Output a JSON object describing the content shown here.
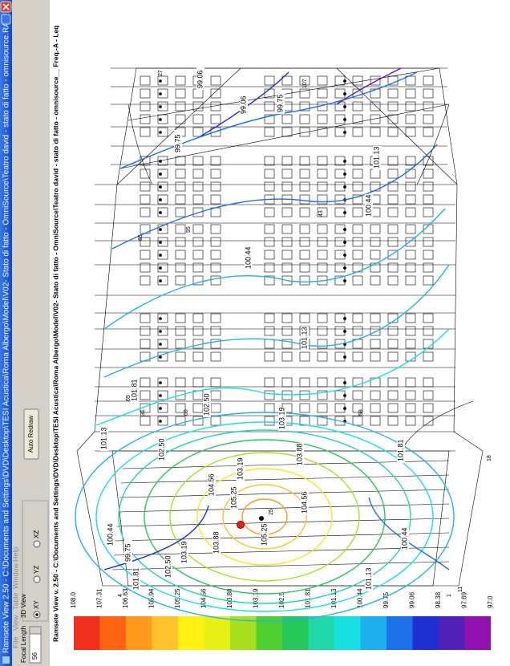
{
  "window": {
    "title": "Ramsete View 2.50 - C:\\Documents and Settings\\DVD\\Desktop\\TESI Acustica\\Roma Albergo\\Model\\V02- Stato di fatto - OmniSource\\Teatro david - stato di fatto - omnisource.RAY",
    "menu": [
      "File",
      "View",
      "Table",
      "Window",
      "Help"
    ]
  },
  "toolbar": {
    "focal_length_label": "Focal Length",
    "focal_length": "56",
    "view_group": "3D View",
    "views": [
      "XY",
      "YZ",
      "XZ"
    ],
    "auto_redraw": "Auto Redraw"
  },
  "plot": {
    "header": "Ramsete View v. 2.50 - C:\\Documents and Settings\\DVD\\Desktop\\TESI Acustica\\Roma Albergo\\Model\\V02- Stato di fatto - OmniSource\\Teatro david - stato di fatto - omnisource__ Freq.-A - Leq",
    "contour_labels": [
      "105.25",
      "104.56",
      "103.88",
      "103.19",
      "102.50",
      "101.81",
      "101.13",
      "100.44",
      "99.75",
      "105.25",
      "104.56",
      "103.88",
      "103.19",
      "102.50",
      "101.81",
      "101.13",
      "100.44",
      "103.19",
      "102.50",
      "101.81",
      "101.13",
      "100.44",
      "99.75",
      "99.06",
      "99.75",
      "99.06",
      "101.13",
      "100.44"
    ],
    "point_labels": [
      "4",
      "1",
      "25",
      "31",
      "60",
      "65",
      "85",
      "95",
      "43",
      "58",
      "107",
      "27",
      "18",
      "11"
    ]
  },
  "legend": {
    "levels": [
      "108.0",
      "107.31",
      "106.63",
      "105.94",
      "105.25",
      "104.56",
      "103.88",
      "103.19",
      "102.5",
      "101.81",
      "101.13",
      "100.44",
      "99.75",
      "99.06",
      "98.38",
      "97.69",
      "97.0"
    ],
    "colors": [
      "#f0301c",
      "#ff6410",
      "#ff9a1c",
      "#ffc22c",
      "#fff014",
      "#e8f018",
      "#a8e020",
      "#50d030",
      "#28c85c",
      "#20d8a8",
      "#18e0e0",
      "#20b0f0",
      "#1c70e8",
      "#2030d0",
      "#5020b8",
      "#9010b0"
    ]
  }
}
